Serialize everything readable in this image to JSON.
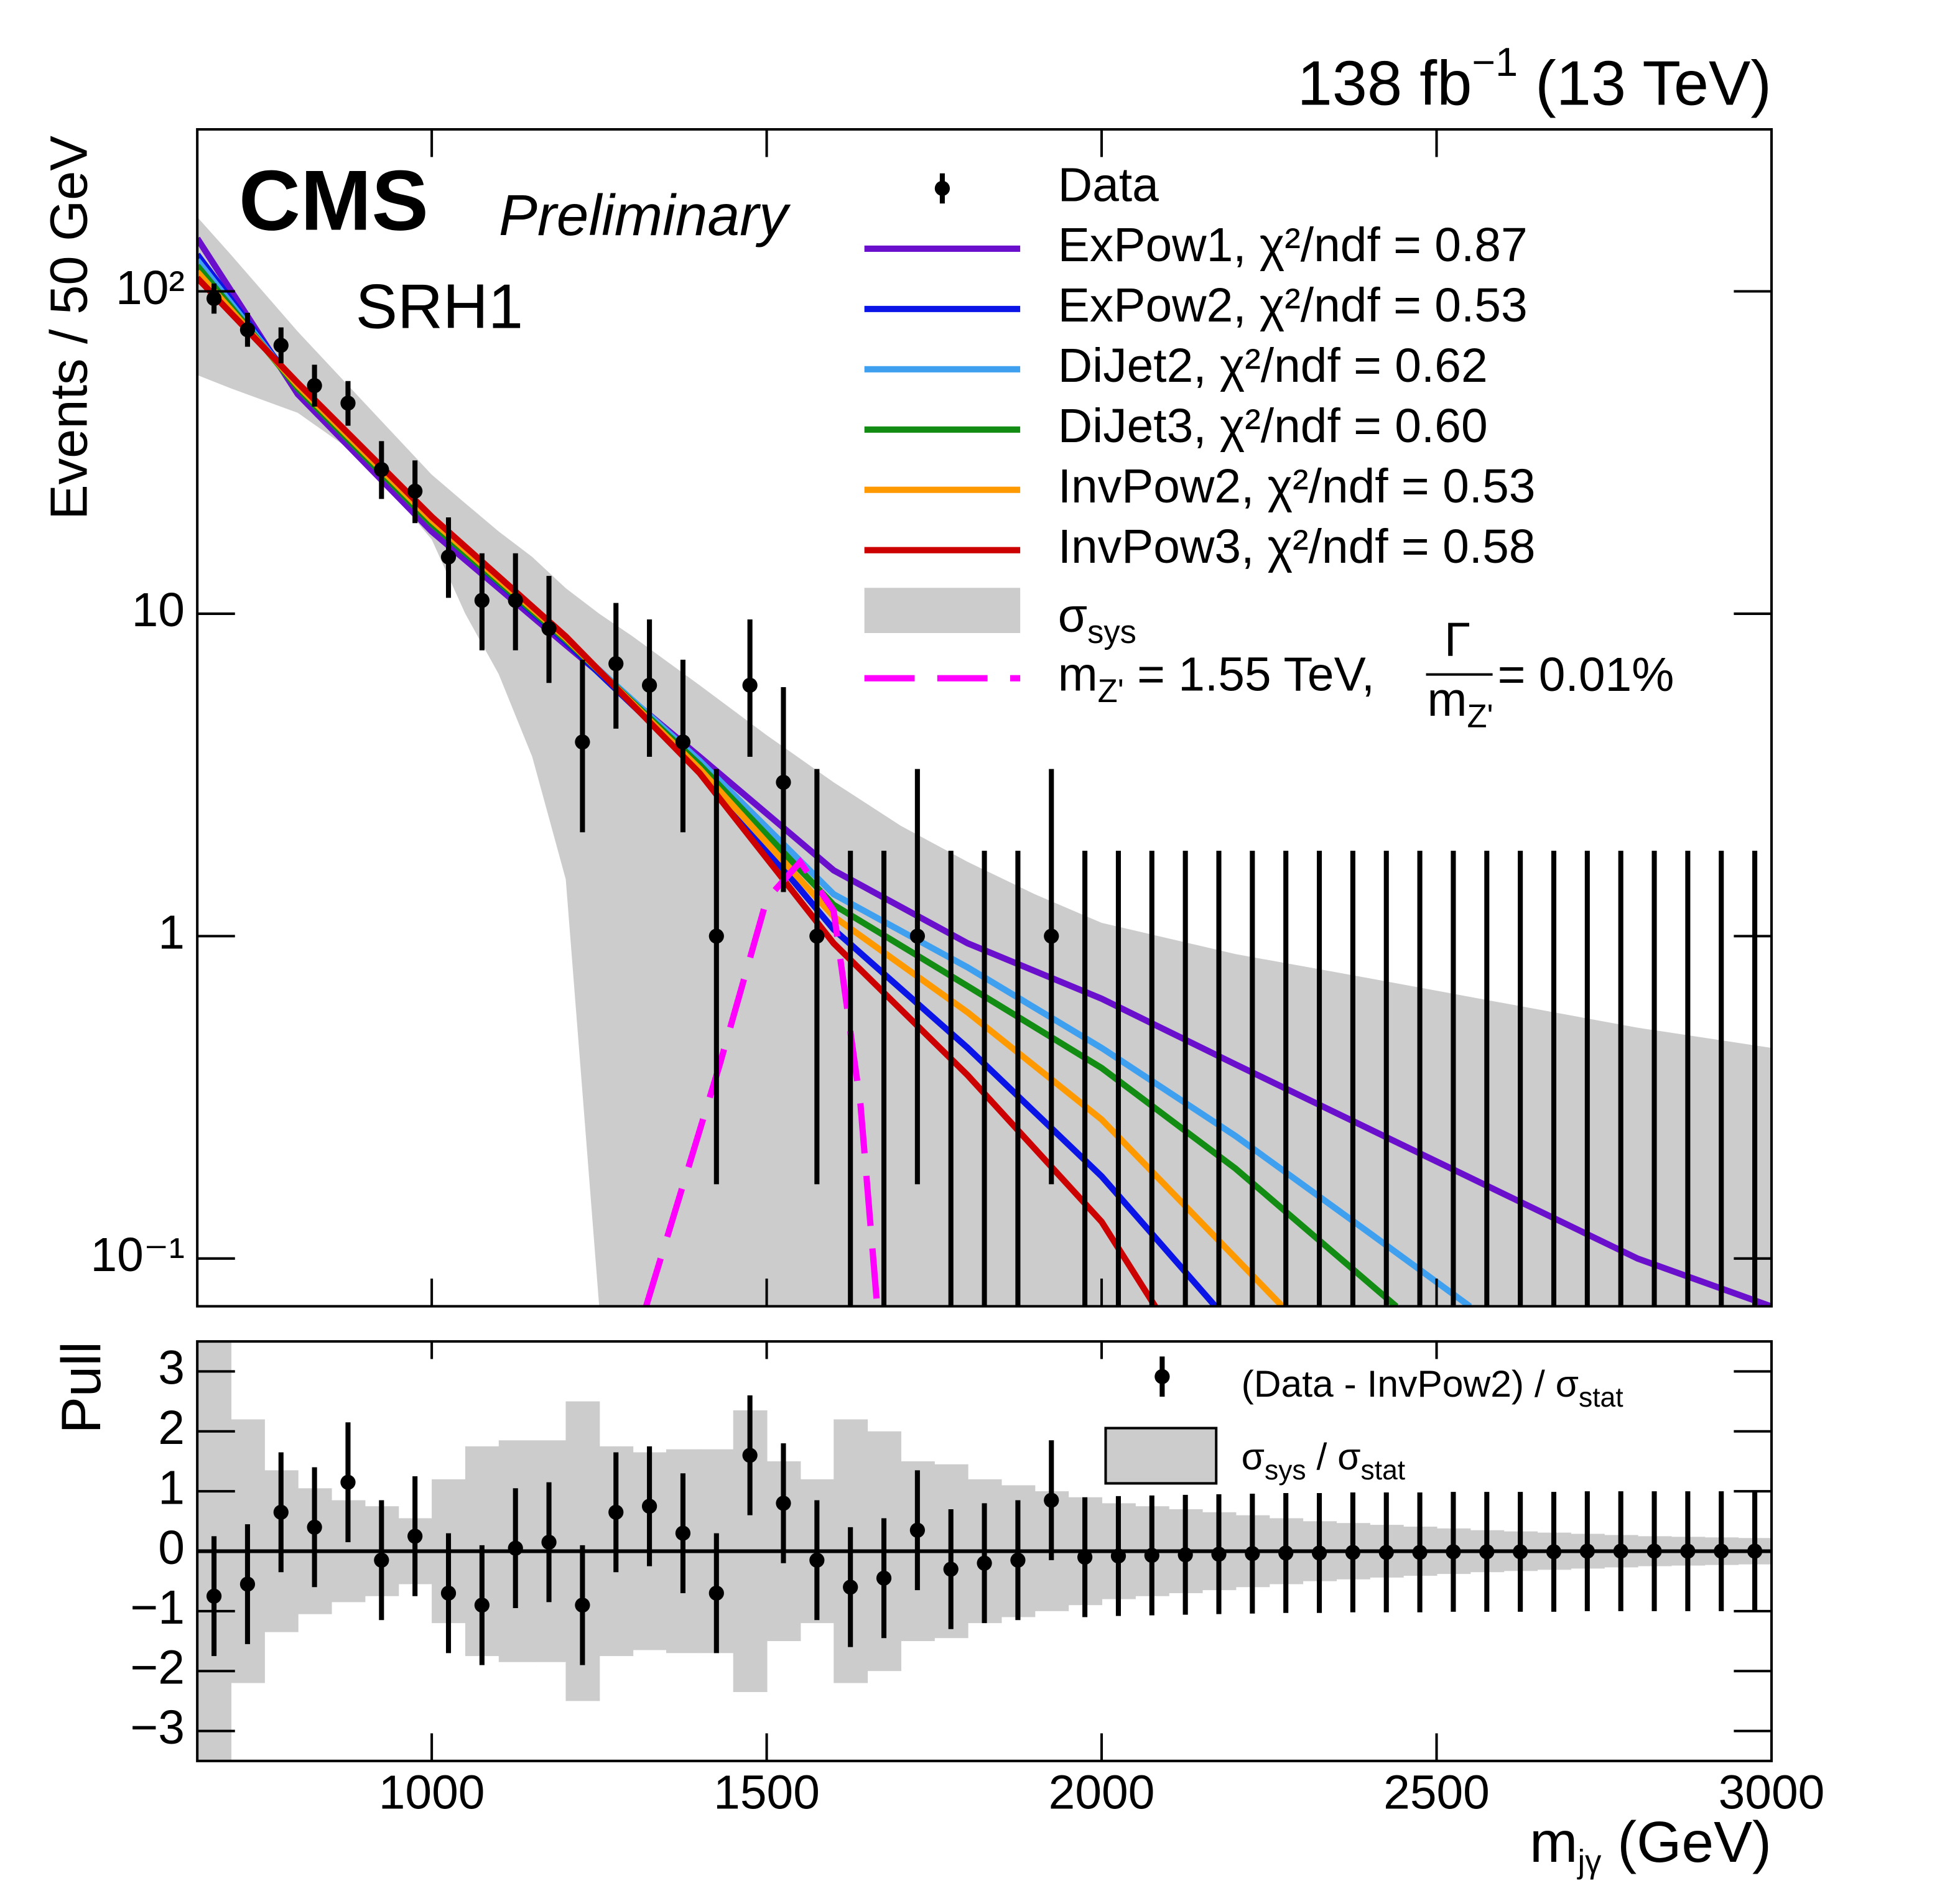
{
  "chart_data": [
    {
      "type": "line",
      "lumi": "138 fb",
      "lumi_exp": "−1",
      "energy": " (13 TeV)",
      "cms": "CMS",
      "preliminary": "Preliminary",
      "region": "SRH1",
      "y_label": "Events / 50 GeV",
      "log_y": true,
      "ylim": [
        0.0711,
        318
      ],
      "yticks": [
        {
          "value": 0.1,
          "label": "10⁻¹"
        },
        1,
        10,
        {
          "value": 100,
          "label": "10²"
        }
      ],
      "data_name": "Data",
      "x": [
        675,
        725,
        775,
        825,
        875,
        925,
        975,
        1025,
        1075,
        1125,
        1175,
        1225,
        1275,
        1325,
        1375,
        1425,
        1475,
        1525,
        1575,
        1625,
        1675,
        1725,
        1775,
        1825,
        1875,
        1925,
        1975,
        2025,
        2075,
        2125,
        2175,
        2225,
        2275,
        2325,
        2375,
        2425,
        2475,
        2525,
        2575,
        2625,
        2675,
        2725,
        2775,
        2825,
        2875,
        2925,
        2975
      ],
      "values": [
        95,
        76,
        68,
        51,
        45,
        28,
        24,
        15,
        11,
        11,
        9,
        4,
        7,
        6,
        4,
        1,
        6,
        3,
        1,
        0,
        0,
        1,
        0,
        0,
        0,
        1,
        0,
        0,
        0,
        0,
        0,
        0,
        0,
        0,
        0,
        0,
        0,
        0,
        0,
        0,
        0,
        0,
        0,
        0,
        0,
        0,
        0
      ],
      "yerr_low": [
        9.7,
        8.7,
        8.2,
        7.1,
        6.7,
        5.3,
        4.9,
        3.8,
        3.3,
        3.3,
        2.9,
        1.9,
        2.6,
        2.4,
        1.9,
        0.83,
        2.4,
        1.63,
        0.83,
        0,
        0,
        0.83,
        0,
        0,
        0,
        0.83,
        0,
        0,
        0,
        0,
        0,
        0,
        0,
        0,
        0,
        0,
        0,
        0,
        0,
        0,
        0,
        0,
        0,
        0,
        0,
        0,
        0
      ],
      "yerr_high": [
        10.8,
        9.8,
        9.3,
        8.2,
        7.7,
        6.3,
        5.9,
        4.9,
        4.4,
        4.4,
        4.1,
        3.2,
        3.8,
        3.6,
        3.2,
        2.3,
        3.6,
        2.92,
        2.3,
        1.84,
        1.84,
        2.3,
        1.84,
        1.84,
        1.84,
        2.3,
        1.84,
        1.84,
        1.84,
        1.84,
        1.84,
        1.84,
        1.84,
        1.84,
        1.84,
        1.84,
        1.84,
        1.84,
        1.84,
        1.84,
        1.84,
        1.84,
        1.84,
        1.84,
        1.84,
        1.84,
        1.84
      ],
      "series": [
        {
          "name": "ExPow1, χ²/ndf = 0.87",
          "color": "#6a0fcc",
          "x": [
            650,
            800,
            1000,
            1200,
            1400,
            1500,
            1600,
            1800,
            2000,
            2200,
            2500,
            2800,
            3000
          ],
          "values": [
            146,
            48,
            18,
            8,
            3.6,
            2.4,
            1.6,
            0.95,
            0.64,
            0.4,
            0.2,
            0.1,
            0.071
          ]
        },
        {
          "name": "ExPow2, χ²/ndf = 0.53",
          "color": "#0a14e6",
          "x": [
            650,
            800,
            1000,
            1200,
            1400,
            1600,
            1800,
            2000,
            2170
          ],
          "values": [
            130,
            50,
            19,
            8.2,
            3.3,
            1.05,
            0.45,
            0.18,
            0.071
          ]
        },
        {
          "name": "DiJet2, χ²/ndf = 0.62",
          "color": "#3fa0f0",
          "x": [
            650,
            800,
            1000,
            1200,
            1400,
            1600,
            1800,
            2000,
            2200,
            2400,
            2550
          ],
          "values": [
            125,
            50,
            19,
            8.3,
            3.5,
            1.35,
            0.8,
            0.45,
            0.24,
            0.12,
            0.071
          ]
        },
        {
          "name": "DiJet3, χ²/ndf = 0.60",
          "color": "#128c12",
          "x": [
            650,
            800,
            1000,
            1200,
            1400,
            1600,
            1800,
            2000,
            2200,
            2440
          ],
          "values": [
            120,
            50,
            19,
            8.3,
            3.4,
            1.25,
            0.7,
            0.39,
            0.19,
            0.071
          ]
        },
        {
          "name": "InvPow2, χ²/ndf = 0.53",
          "color": "#ff9900",
          "x": [
            650,
            800,
            1000,
            1200,
            1400,
            1600,
            1800,
            2000,
            2270
          ],
          "values": [
            115,
            51,
            19.5,
            8.4,
            3.3,
            1.15,
            0.58,
            0.27,
            0.071
          ]
        },
        {
          "name": "InvPow3, χ²/ndf = 0.58",
          "color": "#cc0000",
          "x": [
            650,
            800,
            1000,
            1200,
            1400,
            1600,
            1800,
            2000,
            2080
          ],
          "values": [
            110,
            52,
            20,
            8.5,
            3.2,
            0.95,
            0.37,
            0.13,
            0.071
          ]
        }
      ],
      "band": {
        "label": "σ",
        "label_sub": "sys",
        "color": "#cccccc",
        "x": [
          650,
          700,
          800,
          900,
          1000,
          1050,
          1100,
          1150,
          1200,
          1250,
          1300,
          1400,
          1500,
          1600,
          1700,
          1800,
          1900,
          2000,
          2200,
          2400,
          2600,
          2800,
          3000
        ],
        "upper": [
          170,
          130,
          75,
          45,
          27,
          22,
          18,
          15,
          12,
          10,
          8.5,
          6,
          4.2,
          3,
          2.2,
          1.7,
          1.35,
          1.1,
          0.88,
          0.74,
          0.62,
          0.52,
          0.45
        ],
        "lower": [
          55,
          50,
          42,
          30,
          17,
          10,
          6.5,
          3.6,
          1.5,
          0.0711,
          0.0711,
          0.0711,
          0.0711,
          0.0711,
          0.0711,
          0.0711,
          0.0711,
          0.0711,
          0.0711,
          0.0711,
          0.0711,
          0.0711,
          0.0711
        ]
      },
      "signal": {
        "label": [
          "m",
          "Z'",
          " = 1.55 TeV, ",
          "Γ",
          "m",
          "Z'",
          " = 0.01%"
        ],
        "color": "#ff00ff",
        "x": [
          1320,
          1430,
          1500,
          1550,
          1600,
          1640,
          1665
        ],
        "values": [
          0.071,
          0.4,
          1.3,
          1.7,
          1.2,
          0.3,
          0.071
        ]
      }
    },
    {
      "type": "errorbar",
      "y_label": "Pull",
      "x_label": [
        "m",
        "jγ",
        " (GeV)"
      ],
      "xlim": [
        650,
        3000
      ],
      "xticks": [
        1000,
        1500,
        2000,
        2500,
        3000
      ],
      "ylim": [
        -3.5,
        3.5
      ],
      "yticks": [
        {
          "value": -3,
          "label": "−3"
        },
        {
          "value": -2,
          "label": "−2"
        },
        {
          "value": -1,
          "label": "−1"
        },
        0,
        1,
        2,
        3
      ],
      "legend_data": [
        "(Data - InvPow2) / σ",
        "stat"
      ],
      "legend_band": [
        "σ",
        "sys",
        " / σ",
        "stat"
      ],
      "x": [
        675,
        725,
        775,
        825,
        875,
        925,
        975,
        1025,
        1075,
        1125,
        1175,
        1225,
        1275,
        1325,
        1375,
        1425,
        1475,
        1525,
        1575,
        1625,
        1675,
        1725,
        1775,
        1825,
        1875,
        1925,
        1975,
        2025,
        2075,
        2125,
        2175,
        2225,
        2275,
        2325,
        2375,
        2425,
        2475,
        2525,
        2575,
        2625,
        2675,
        2725,
        2775,
        2825,
        2875,
        2925,
        2975
      ],
      "values": [
        -0.75,
        -0.55,
        0.65,
        0.4,
        1.15,
        -0.15,
        0.25,
        -0.7,
        -0.9,
        0.05,
        0.15,
        -0.9,
        0.65,
        0.75,
        0.3,
        -0.7,
        1.6,
        0.8,
        -0.15,
        -0.6,
        -0.45,
        0.35,
        -0.3,
        -0.2,
        -0.15,
        0.85,
        -0.1,
        -0.08,
        -0.07,
        -0.06,
        -0.05,
        -0.04,
        -0.03,
        -0.03,
        -0.02,
        -0.02,
        -0.02,
        -0.01,
        -0.01,
        -0.01,
        -0.01,
        0,
        0,
        0,
        0,
        0,
        0
      ],
      "yerr": 1,
      "band": [
        3.5,
        2.2,
        1.35,
        1.05,
        0.85,
        0.75,
        0.55,
        1.2,
        1.75,
        1.85,
        1.85,
        2.5,
        1.75,
        1.65,
        1.7,
        1.7,
        2.35,
        1.5,
        1.2,
        2.2,
        2.0,
        1.5,
        1.45,
        1.2,
        1.1,
        1.0,
        0.9,
        0.8,
        0.75,
        0.7,
        0.65,
        0.6,
        0.55,
        0.5,
        0.47,
        0.44,
        0.41,
        0.38,
        0.35,
        0.33,
        0.31,
        0.29,
        0.27,
        0.25,
        0.24,
        0.23,
        0.22
      ],
      "band_color": "#cccccc"
    }
  ]
}
